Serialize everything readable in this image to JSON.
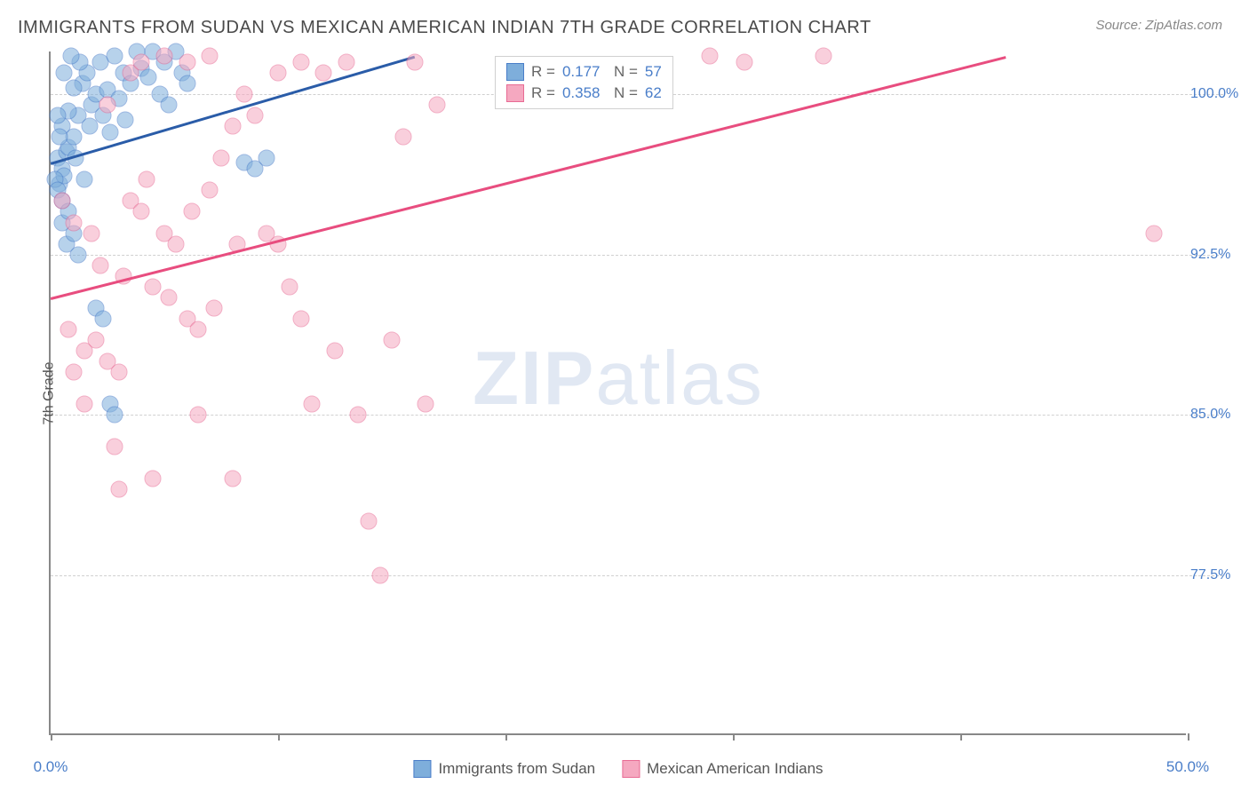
{
  "title": "IMMIGRANTS FROM SUDAN VS MEXICAN AMERICAN INDIAN 7TH GRADE CORRELATION CHART",
  "source": "Source: ZipAtlas.com",
  "watermark_zip": "ZIP",
  "watermark_atlas": "atlas",
  "chart": {
    "type": "scatter",
    "background_color": "#ffffff",
    "grid_color": "#d0d0d0",
    "axis_color": "#888888",
    "text_color": "#4a7ec9",
    "xlim": [
      0,
      50
    ],
    "ylim": [
      70,
      102
    ],
    "x_ticks": [
      0,
      10,
      20,
      30,
      40,
      50
    ],
    "x_tick_labels": [
      "0.0%",
      "",
      "",
      "",
      "",
      "50.0%"
    ],
    "y_ticks": [
      77.5,
      85.0,
      92.5,
      100.0
    ],
    "y_tick_labels": [
      "77.5%",
      "85.0%",
      "92.5%",
      "100.0%"
    ],
    "y_axis_label": "7th Grade",
    "marker_size": 19,
    "marker_opacity": 0.55,
    "series": [
      {
        "name": "Immigrants from Sudan",
        "fill_color": "#7eaedb",
        "stroke_color": "#4a7ec9",
        "line_color": "#2a5ca8",
        "r": "0.177",
        "n": "57",
        "trend": {
          "x1": 0,
          "y1": 96.8,
          "x2": 16.0,
          "y2": 101.8
        },
        "points": [
          [
            0.3,
            97.0
          ],
          [
            0.5,
            96.5
          ],
          [
            0.7,
            97.3
          ],
          [
            0.4,
            95.8
          ],
          [
            0.6,
            96.2
          ],
          [
            0.8,
            97.5
          ],
          [
            1.0,
            98.0
          ],
          [
            1.2,
            99.0
          ],
          [
            1.4,
            100.5
          ],
          [
            1.6,
            101.0
          ],
          [
            1.8,
            99.5
          ],
          [
            2.0,
            100.0
          ],
          [
            2.2,
            101.5
          ],
          [
            2.5,
            100.2
          ],
          [
            2.8,
            101.8
          ],
          [
            3.0,
            99.8
          ],
          [
            3.2,
            101.0
          ],
          [
            3.5,
            100.5
          ],
          [
            3.8,
            102.0
          ],
          [
            4.0,
            101.2
          ],
          [
            4.3,
            100.8
          ],
          [
            4.5,
            102.0
          ],
          [
            5.0,
            101.5
          ],
          [
            5.5,
            102.0
          ],
          [
            0.5,
            98.5
          ],
          [
            0.8,
            99.2
          ],
          [
            1.0,
            100.3
          ],
          [
            1.3,
            101.5
          ],
          [
            1.5,
            96.0
          ],
          [
            0.3,
            99.0
          ],
          [
            0.4,
            98.0
          ],
          [
            0.6,
            101.0
          ],
          [
            0.9,
            101.8
          ],
          [
            1.1,
            97.0
          ],
          [
            1.7,
            98.5
          ],
          [
            2.3,
            99.0
          ],
          [
            2.6,
            98.2
          ],
          [
            3.3,
            98.8
          ],
          [
            0.5,
            94.0
          ],
          [
            0.7,
            93.0
          ],
          [
            2.0,
            90.0
          ],
          [
            2.3,
            89.5
          ],
          [
            2.6,
            85.5
          ],
          [
            2.8,
            85.0
          ],
          [
            8.5,
            96.8
          ],
          [
            9.0,
            96.5
          ],
          [
            9.5,
            97.0
          ],
          [
            4.8,
            100.0
          ],
          [
            5.2,
            99.5
          ],
          [
            5.8,
            101.0
          ],
          [
            6.0,
            100.5
          ],
          [
            0.2,
            96.0
          ],
          [
            0.3,
            95.5
          ],
          [
            0.5,
            95.0
          ],
          [
            0.8,
            94.5
          ],
          [
            1.0,
            93.5
          ],
          [
            1.2,
            92.5
          ]
        ]
      },
      {
        "name": "Mexican American Indians",
        "fill_color": "#f5a8c0",
        "stroke_color": "#e86b94",
        "line_color": "#e84d7f",
        "r": "0.358",
        "n": "62",
        "trend": {
          "x1": 0,
          "y1": 90.5,
          "x2": 42.0,
          "y2": 101.8
        },
        "points": [
          [
            0.5,
            95.0
          ],
          [
            1.0,
            94.0
          ],
          [
            1.5,
            88.0
          ],
          [
            2.0,
            88.5
          ],
          [
            2.5,
            87.5
          ],
          [
            3.0,
            87.0
          ],
          [
            3.5,
            95.0
          ],
          [
            4.0,
            94.5
          ],
          [
            4.5,
            91.0
          ],
          [
            5.0,
            93.5
          ],
          [
            5.5,
            93.0
          ],
          [
            6.0,
            89.5
          ],
          [
            6.5,
            89.0
          ],
          [
            7.0,
            95.5
          ],
          [
            7.5,
            97.0
          ],
          [
            8.0,
            98.5
          ],
          [
            8.5,
            100.0
          ],
          [
            9.0,
            99.0
          ],
          [
            9.5,
            93.5
          ],
          [
            10.0,
            93.0
          ],
          [
            10.5,
            91.0
          ],
          [
            11.0,
            89.5
          ],
          [
            11.5,
            85.5
          ],
          [
            12.0,
            101.0
          ],
          [
            12.5,
            88.0
          ],
          [
            13.0,
            101.5
          ],
          [
            13.5,
            85.0
          ],
          [
            14.0,
            80.0
          ],
          [
            14.5,
            77.5
          ],
          [
            15.0,
            88.5
          ],
          [
            15.5,
            98.0
          ],
          [
            16.0,
            101.5
          ],
          [
            16.5,
            85.5
          ],
          [
            17.0,
            99.5
          ],
          [
            6.0,
            101.5
          ],
          [
            7.0,
            101.8
          ],
          [
            3.0,
            81.5
          ],
          [
            4.5,
            82.0
          ],
          [
            8.0,
            82.0
          ],
          [
            2.5,
            99.5
          ],
          [
            3.5,
            101.0
          ],
          [
            4.0,
            101.5
          ],
          [
            5.0,
            101.8
          ],
          [
            29.0,
            101.8
          ],
          [
            30.5,
            101.5
          ],
          [
            34.0,
            101.8
          ],
          [
            48.5,
            93.5
          ],
          [
            6.5,
            85.0
          ],
          [
            1.8,
            93.5
          ],
          [
            2.2,
            92.0
          ],
          [
            3.2,
            91.5
          ],
          [
            4.2,
            96.0
          ],
          [
            5.2,
            90.5
          ],
          [
            6.2,
            94.5
          ],
          [
            7.2,
            90.0
          ],
          [
            8.2,
            93.0
          ],
          [
            1.0,
            87.0
          ],
          [
            1.5,
            85.5
          ],
          [
            0.8,
            89.0
          ],
          [
            2.8,
            83.5
          ],
          [
            10.0,
            101.0
          ],
          [
            11.0,
            101.5
          ]
        ]
      }
    ],
    "legend_top": {
      "r_label": "R =",
      "n_label": "N ="
    },
    "bottom_legend": [
      {
        "label": "Immigrants from Sudan",
        "fill": "#7eaedb",
        "stroke": "#4a7ec9"
      },
      {
        "label": "Mexican American Indians",
        "fill": "#f5a8c0",
        "stroke": "#e86b94"
      }
    ]
  }
}
